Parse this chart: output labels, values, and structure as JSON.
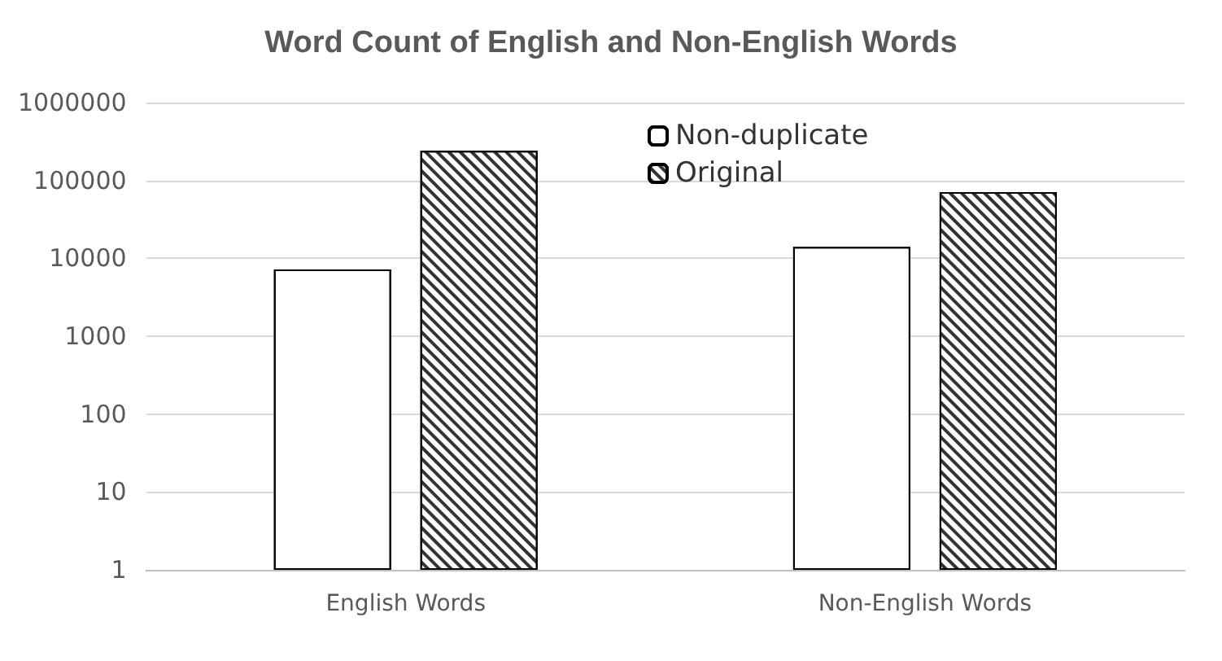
{
  "chart_data": {
    "type": "bar",
    "title": "Word Count of English and Non-English Words",
    "categories": [
      "English Words",
      "Non-English Words"
    ],
    "series": [
      {
        "name": "Non-duplicate",
        "color": "#ffffff",
        "values": [
          7200,
          14000
        ]
      },
      {
        "name": "Original",
        "color": "#ffffff",
        "values": [
          240000,
          71000
        ]
      }
    ],
    "log": true,
    "ylim": [
      1,
      1000000
    ],
    "yticks": [
      1,
      10,
      100,
      1000,
      10000,
      100000,
      1000000
    ],
    "grid": "y",
    "legend": "top"
  }
}
